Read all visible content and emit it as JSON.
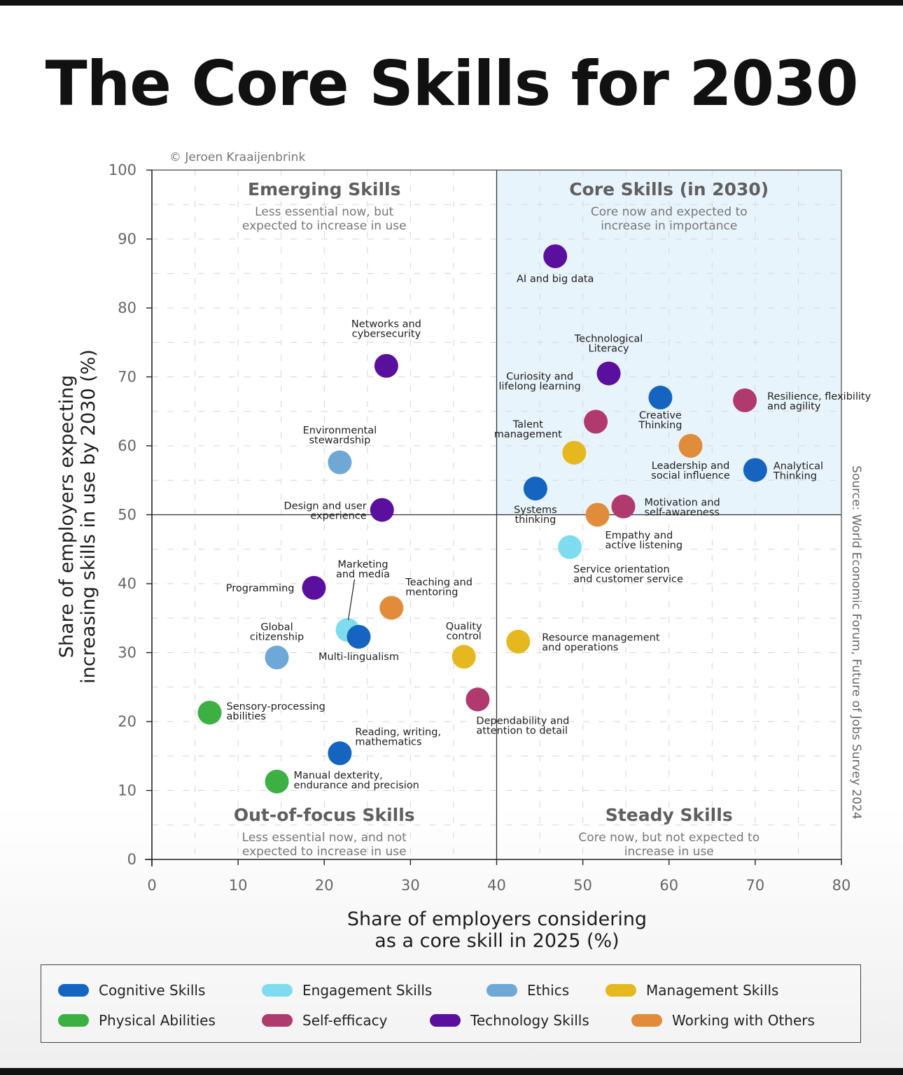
{
  "title": "The Core Skills for 2030",
  "credit": "© Jeroen Kraaijenbrink",
  "source": "Source: World Economic Forum, Future of Jobs Survey 2024",
  "chart_data": {
    "type": "scatter",
    "xlabel": [
      "Share of employers considering",
      "as a core skill in 2025 (%)"
    ],
    "ylabel": [
      "Share of employers expecting",
      "increasing skills in use by 2030 (%)"
    ],
    "xlim": [
      0,
      80
    ],
    "ylim": [
      0,
      100
    ],
    "xticks": [
      0,
      10,
      20,
      30,
      40,
      50,
      60,
      70,
      80
    ],
    "yticks": [
      0,
      10,
      20,
      30,
      40,
      50,
      60,
      70,
      80,
      90,
      100
    ],
    "grid": true,
    "divider_x": 40,
    "divider_y": 50,
    "quadrants": [
      {
        "id": "emerging",
        "title": "Emerging Skills",
        "subtitle": [
          "Less essential now, but",
          "expected to increase in use"
        ]
      },
      {
        "id": "core",
        "title": "Core Skills (in 2030)",
        "subtitle": [
          "Core now and expected to",
          "increase in importance"
        ]
      },
      {
        "id": "out-of-focus",
        "title": "Out-of-focus Skills",
        "subtitle": [
          "Less essential now, and not",
          "expected to increase in use"
        ]
      },
      {
        "id": "steady",
        "title": "Steady Skills",
        "subtitle": [
          "Core now, but not expected to",
          "increase in use"
        ]
      }
    ],
    "categories": [
      {
        "name": "Cognitive Skills",
        "color": "#1565c0"
      },
      {
        "name": "Engagement Skills",
        "color": "#7fdcee"
      },
      {
        "name": "Ethics",
        "color": "#6fa8d6"
      },
      {
        "name": "Management Skills",
        "color": "#e6b820"
      },
      {
        "name": "Physical Abilities",
        "color": "#3cb043"
      },
      {
        "name": "Self-efficacy",
        "color": "#b03a6e"
      },
      {
        "name": "Technology Skills",
        "color": "#5b0f9e"
      },
      {
        "name": "Working with Others",
        "color": "#e08c3a"
      }
    ],
    "points": [
      {
        "label": [
          "AI and big data"
        ],
        "x": 46.8,
        "y": 87.5,
        "category": "Technology Skills"
      },
      {
        "label": [
          "Technological",
          "Literacy"
        ],
        "x": 53,
        "y": 70.5,
        "category": "Technology Skills"
      },
      {
        "label": [
          "Networks and",
          "cybersecurity"
        ],
        "x": 27.2,
        "y": 71.6,
        "category": "Technology Skills"
      },
      {
        "label": [
          "Curiosity and",
          "lifelong learning"
        ],
        "x": 51.5,
        "y": 63.5,
        "category": "Self-efficacy"
      },
      {
        "label": [
          "Creative",
          "Thinking"
        ],
        "x": 59,
        "y": 67,
        "category": "Cognitive Skills"
      },
      {
        "label": [
          "Resilience, flexibility",
          "and agility"
        ],
        "x": 68.8,
        "y": 66.6,
        "category": "Self-efficacy"
      },
      {
        "label": [
          "Talent",
          "management"
        ],
        "x": 49,
        "y": 59,
        "category": "Management Skills"
      },
      {
        "label": [
          "Leadership and",
          "social influence"
        ],
        "x": 62.5,
        "y": 60,
        "category": "Working with Others"
      },
      {
        "label": [
          "Analytical",
          "Thinking"
        ],
        "x": 70,
        "y": 56.5,
        "category": "Cognitive Skills"
      },
      {
        "label": [
          "Environmental",
          "stewardship"
        ],
        "x": 21.8,
        "y": 57.6,
        "category": "Ethics"
      },
      {
        "label": [
          "Systems",
          "thinking"
        ],
        "x": 44.5,
        "y": 53.8,
        "category": "Cognitive Skills"
      },
      {
        "label": [
          "Motivation and",
          "self-awareness"
        ],
        "x": 54.7,
        "y": 51.2,
        "category": "Self-efficacy"
      },
      {
        "label": [
          "Empathy and",
          "active listening"
        ],
        "x": 51.7,
        "y": 50,
        "category": "Working with Others"
      },
      {
        "label": [
          "Design and user",
          "experience"
        ],
        "x": 26.7,
        "y": 50.7,
        "category": "Technology Skills"
      },
      {
        "label": [
          "Service orientation",
          "and customer service"
        ],
        "x": 48.5,
        "y": 45.3,
        "category": "Engagement Skills"
      },
      {
        "label": [
          "Programming"
        ],
        "x": 18.8,
        "y": 39.4,
        "category": "Technology Skills"
      },
      {
        "label": [
          "Marketing",
          "and media"
        ],
        "x": 22.7,
        "y": 33.3,
        "category": "Engagement Skills"
      },
      {
        "label": [
          "Teaching and",
          "mentoring"
        ],
        "x": 27.8,
        "y": 36.5,
        "category": "Working with Others"
      },
      {
        "label": [
          "Multi-lingualism"
        ],
        "x": 24,
        "y": 32.3,
        "category": "Cognitive Skills"
      },
      {
        "label": [
          "Global",
          "citizenship"
        ],
        "x": 14.5,
        "y": 29.3,
        "category": "Ethics"
      },
      {
        "label": [
          "Quality",
          "control"
        ],
        "x": 36.2,
        "y": 29.4,
        "category": "Management Skills"
      },
      {
        "label": [
          "Resource management",
          "and operations"
        ],
        "x": 42.5,
        "y": 31.6,
        "category": "Management Skills"
      },
      {
        "label": [
          "Dependability and",
          "attention to detail"
        ],
        "x": 37.8,
        "y": 23.2,
        "category": "Self-efficacy"
      },
      {
        "label": [
          "Sensory-processing",
          "abilities"
        ],
        "x": 6.7,
        "y": 21.3,
        "category": "Physical Abilities"
      },
      {
        "label": [
          "Reading, writing,",
          "mathematics"
        ],
        "x": 21.8,
        "y": 15.4,
        "category": "Cognitive Skills"
      },
      {
        "label": [
          "Manual dexterity,",
          "endurance and precision"
        ],
        "x": 14.5,
        "y": 11.3,
        "category": "Physical Abilities"
      }
    ]
  }
}
